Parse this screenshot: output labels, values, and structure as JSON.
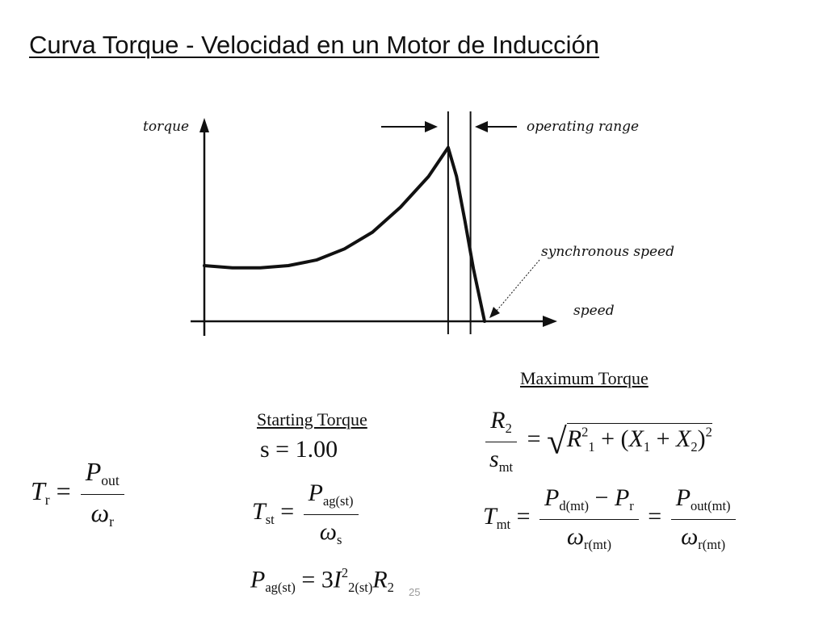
{
  "slide": {
    "title": "Curva Torque - Velocidad en un Motor de Inducción",
    "page_number": "25"
  },
  "diagram": {
    "y_axis_label": "torque",
    "x_axis_label": "speed",
    "operating_range_label": "operating range",
    "sync_speed_label": "synchronous speed",
    "curve": {
      "speed": [
        0,
        0.1,
        0.2,
        0.3,
        0.4,
        0.5,
        0.6,
        0.7,
        0.8,
        0.87,
        0.9,
        0.93,
        0.96,
        1.0
      ],
      "torque": [
        1.0,
        0.96,
        0.96,
        1.0,
        1.1,
        1.3,
        1.6,
        2.05,
        2.6,
        3.12,
        2.6,
        1.8,
        0.95,
        0.0
      ]
    },
    "breakdown_speed": 0.87,
    "synchronous_speed": 1.0,
    "range_right_speed": 0.95
  },
  "formulas": {
    "max_torque_heading": "Maximum Torque",
    "starting_torque_heading": "Starting Torque",
    "slip_start": "s = 1.00",
    "torque_general": {
      "T": "T",
      "T_sub": "r",
      "P": "P",
      "P_sub": "out",
      "w": "ω",
      "w_sub": "r",
      "eq": "="
    },
    "starting": {
      "T": "T",
      "T_sub": "st",
      "P": "P",
      "P_sub": "ag(st)",
      "w": "ω",
      "w_sub": "s",
      "power_lhs": "P",
      "power_lhs_sub": "ag(st)",
      "power_rhs_coef": "3",
      "I": "I",
      "I_sup": "2",
      "I_sub": "2(st)",
      "R": "R",
      "R_sub": "2",
      "eq": "="
    },
    "maximum": {
      "R2": "R",
      "R2_sub": "2",
      "s": "s",
      "s_sub": "mt",
      "R1": "R",
      "R1_sup": "2",
      "R1_sub": "1",
      "plus": "+",
      "X1": "X",
      "X1_sub": "1",
      "X2": "X",
      "X2_sub": "2",
      "outer_sup": "2",
      "lparen": "(",
      "rparen": ")",
      "T": "T",
      "T_sub": "mt",
      "Pd": "P",
      "Pd_sub": "d(mt)",
      "minus": "−",
      "Pr": "P",
      "Pr_sub": "r",
      "w1": "ω",
      "w1_sub": "r(mt)",
      "Po": "P",
      "Po_sub": "out(mt)",
      "w2": "ω",
      "w2_sub": "r(mt)",
      "eq": "="
    }
  }
}
